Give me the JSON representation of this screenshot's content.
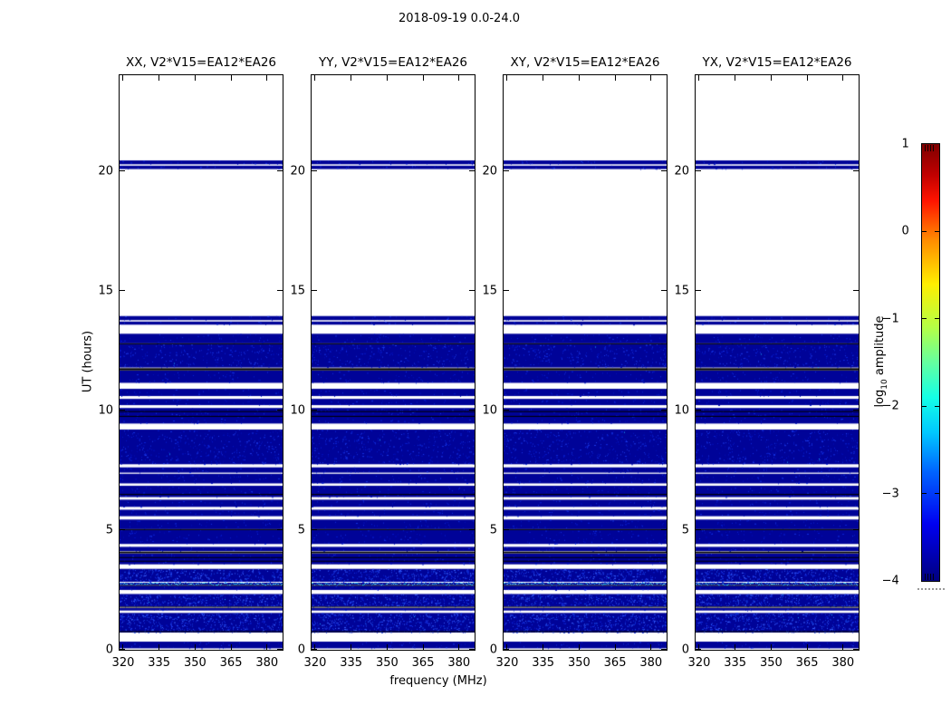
{
  "figure": {
    "title": "2018-09-19 0.0-24.0",
    "background": "#ffffff"
  },
  "chart_data": {
    "type": "heatmap",
    "title": "2018-09-19 0.0-24.0",
    "panels": [
      {
        "title": "XX, V2*V15=EA12*EA26"
      },
      {
        "title": "YY, V2*V15=EA12*EA26"
      },
      {
        "title": "XY, V2*V15=EA12*EA26"
      },
      {
        "title": "YX, V2*V15=EA12*EA26"
      }
    ],
    "x_axis": {
      "label": "frequency (MHz)",
      "ticks": [
        320,
        335,
        350,
        365,
        380
      ],
      "range": [
        318.5,
        386.5
      ]
    },
    "y_axis": {
      "label": "UT (hours)",
      "ticks": [
        0,
        5,
        10,
        15,
        20
      ],
      "range": [
        0,
        24
      ]
    },
    "colorbar": {
      "label_prefix": "log",
      "label_sub": "10",
      "label_suffix": " amplitude",
      "ticks": [
        1,
        0,
        -1,
        -2,
        -3,
        -4
      ],
      "range": [
        -4,
        1
      ],
      "colormap": "jet",
      "gradient": [
        {
          "pos": 0,
          "color": "#7f0000"
        },
        {
          "pos": 7,
          "color": "#c00000"
        },
        {
          "pos": 13,
          "color": "#ff1400"
        },
        {
          "pos": 22,
          "color": "#ff8c00"
        },
        {
          "pos": 32,
          "color": "#ffee00"
        },
        {
          "pos": 42,
          "color": "#b4ff46"
        },
        {
          "pos": 50,
          "color": "#64ffa0"
        },
        {
          "pos": 58,
          "color": "#14ffe6"
        },
        {
          "pos": 66,
          "color": "#00c8ff"
        },
        {
          "pos": 75,
          "color": "#0064ff"
        },
        {
          "pos": 87,
          "color": "#0000f0"
        },
        {
          "pos": 100,
          "color": "#00007f"
        }
      ]
    },
    "colors": {
      "band_base": "#000398",
      "band_bright_speckle": "#2448f0",
      "cyan_line": "#30d8f0",
      "black_line": "#000000",
      "frame": "#000000"
    },
    "band_amplitude_log10": {
      "base": -4.0,
      "speckles": -3.2,
      "cyan_line": -2.2
    },
    "bands": [
      {
        "ut_start": 0.06,
        "ut_end": 0.34,
        "style": "solid"
      },
      {
        "ut_start": 0.72,
        "ut_end": 1.54,
        "style": "speckled"
      },
      {
        "ut_start": 0.74,
        "ut_end": 0.78,
        "style": "black"
      },
      {
        "ut_start": 1.64,
        "ut_end": 1.74,
        "style": "solid"
      },
      {
        "ut_start": 1.76,
        "ut_end": 1.8,
        "style": "black"
      },
      {
        "ut_start": 1.8,
        "ut_end": 2.33,
        "style": "speckled"
      },
      {
        "ut_start": 2.5,
        "ut_end": 2.68,
        "style": "solid"
      },
      {
        "ut_start": 2.68,
        "ut_end": 2.71,
        "style": "black"
      },
      {
        "ut_start": 2.71,
        "ut_end": 2.8,
        "style": "cyan"
      },
      {
        "ut_start": 2.84,
        "ut_end": 3.38,
        "style": "speckled"
      },
      {
        "ut_start": 3.57,
        "ut_end": 4.02,
        "style": "solid"
      },
      {
        "ut_start": 3.69,
        "ut_end": 3.72,
        "style": "black"
      },
      {
        "ut_start": 3.84,
        "ut_end": 3.87,
        "style": "black"
      },
      {
        "ut_start": 4.03,
        "ut_end": 4.1,
        "style": "black"
      },
      {
        "ut_start": 4.12,
        "ut_end": 4.3,
        "style": "solid"
      },
      {
        "ut_start": 4.42,
        "ut_end": 5.0,
        "style": "solid"
      },
      {
        "ut_start": 5.0,
        "ut_end": 5.04,
        "style": "black"
      },
      {
        "ut_start": 5.04,
        "ut_end": 5.44,
        "style": "solid"
      },
      {
        "ut_start": 5.58,
        "ut_end": 5.85,
        "style": "solid"
      },
      {
        "ut_start": 5.97,
        "ut_end": 6.27,
        "style": "solid"
      },
      {
        "ut_start": 6.38,
        "ut_end": 6.85,
        "style": "solid"
      },
      {
        "ut_start": 6.47,
        "ut_end": 6.51,
        "style": "black"
      },
      {
        "ut_start": 6.95,
        "ut_end": 7.35,
        "style": "solid"
      },
      {
        "ut_start": 7.4,
        "ut_end": 7.62,
        "style": "solid"
      },
      {
        "ut_start": 7.75,
        "ut_end": 9.2,
        "style": "faint"
      },
      {
        "ut_start": 9.45,
        "ut_end": 10.1,
        "style": "solid"
      },
      {
        "ut_start": 9.73,
        "ut_end": 9.77,
        "style": "black"
      },
      {
        "ut_start": 9.93,
        "ut_end": 9.97,
        "style": "black"
      },
      {
        "ut_start": 10.22,
        "ut_end": 10.48,
        "style": "solid"
      },
      {
        "ut_start": 10.6,
        "ut_end": 10.9,
        "style": "solid"
      },
      {
        "ut_start": 11.15,
        "ut_end": 11.66,
        "style": "solid"
      },
      {
        "ut_start": 11.67,
        "ut_end": 11.76,
        "style": "black"
      },
      {
        "ut_start": 11.79,
        "ut_end": 12.76,
        "style": "faint"
      },
      {
        "ut_start": 12.76,
        "ut_end": 12.8,
        "style": "black"
      },
      {
        "ut_start": 12.8,
        "ut_end": 13.2,
        "style": "solid"
      },
      {
        "ut_start": 13.58,
        "ut_end": 13.71,
        "style": "solid"
      },
      {
        "ut_start": 13.77,
        "ut_end": 13.94,
        "style": "solid"
      },
      {
        "ut_start": 20.08,
        "ut_end": 20.22,
        "style": "solid"
      },
      {
        "ut_start": 20.28,
        "ut_end": 20.44,
        "style": "solid"
      }
    ]
  }
}
